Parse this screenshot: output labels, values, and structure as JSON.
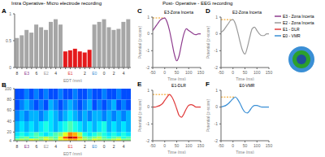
{
  "sections": [
    {
      "title": "Intra Operative- Micro electrode recording"
    },
    {
      "title": "Post- Operative - EEG recording"
    }
  ],
  "chart_data": [
    {
      "panel": "A",
      "type": "bar",
      "categories": [
        "8",
        null,
        "E3",
        null,
        "6",
        null,
        "E2",
        null,
        "4",
        null,
        null,
        "E1",
        null,
        null,
        "2",
        null,
        "E0",
        null,
        "0",
        null,
        "2",
        null,
        "4",
        null
      ],
      "values": [
        0.55,
        0.6,
        0.7,
        0.65,
        0.8,
        0.75,
        0.7,
        0.85,
        0.9,
        0.8,
        0.3,
        0.32,
        0.35,
        0.3,
        0.28,
        0.33,
        0.8,
        0.85,
        0.9,
        0.75,
        0.7,
        0.72,
        0.85,
        0.9
      ],
      "colors": [
        "#a6a6a6",
        "#a6a6a6",
        "#a6a6a6",
        "#a6a6a6",
        "#a6a6a6",
        "#a6a6a6",
        "#a6a6a6",
        "#a6a6a6",
        "#a6a6a6",
        "#a6a6a6",
        "#e41a1c",
        "#e41a1c",
        "#e41a1c",
        "#e41a1c",
        "#e41a1c",
        "#e41a1c",
        "#a6a6a6",
        "#a6a6a6",
        "#a6a6a6",
        "#a6a6a6",
        "#a6a6a6",
        "#a6a6a6",
        "#a6a6a6",
        "#a6a6a6"
      ],
      "ylim": [
        0,
        1
      ],
      "yticks": [
        0,
        0.5,
        1
      ],
      "x_label": "EDT (mm)"
    },
    {
      "panel": "B",
      "type": "heatmap",
      "categories": [
        "8",
        null,
        "E3",
        null,
        "6",
        null,
        "E2",
        null,
        "4",
        null,
        null,
        "E1",
        null,
        null,
        "2",
        null,
        "E0",
        null,
        "0",
        null,
        "2",
        null,
        "4",
        null
      ],
      "y_bins": [
        4,
        8,
        12,
        20,
        40,
        60,
        80,
        100
      ],
      "cells": [
        [
          0.5,
          0.55,
          0.5,
          0.6,
          0.55,
          0.5,
          0.6,
          0.55,
          0.5,
          0.6,
          0.65,
          0.7,
          0.7,
          0.6,
          0.55,
          0.5,
          0.6,
          0.55,
          0.5,
          0.5,
          0.55,
          0.6,
          0.5,
          0.5
        ],
        [
          0.4,
          0.45,
          0.5,
          0.4,
          0.45,
          0.5,
          0.55,
          0.5,
          0.45,
          0.6,
          0.8,
          0.95,
          0.9,
          0.7,
          0.5,
          0.45,
          0.5,
          0.55,
          0.45,
          0.4,
          0.45,
          0.5,
          0.4,
          0.45
        ],
        [
          0.35,
          0.4,
          0.35,
          0.4,
          0.45,
          0.4,
          0.35,
          0.4,
          0.45,
          0.5,
          0.6,
          0.75,
          0.7,
          0.55,
          0.4,
          0.35,
          0.4,
          0.45,
          0.4,
          0.35,
          0.4,
          0.35,
          0.4,
          0.35
        ],
        [
          0.3,
          0.35,
          0.3,
          0.35,
          0.3,
          0.35,
          0.4,
          0.35,
          0.3,
          0.35,
          0.4,
          0.45,
          0.4,
          0.35,
          0.3,
          0.35,
          0.3,
          0.35,
          0.4,
          0.3,
          0.35,
          0.3,
          0.35,
          0.3
        ],
        [
          0.25,
          0.3,
          0.25,
          0.3,
          0.3,
          0.25,
          0.3,
          0.35,
          0.3,
          0.25,
          0.3,
          0.35,
          0.3,
          0.25,
          0.3,
          0.25,
          0.3,
          0.3,
          0.25,
          0.3,
          0.25,
          0.3,
          0.25,
          0.3
        ],
        [
          0.2,
          0.25,
          0.3,
          0.25,
          0.2,
          0.25,
          0.2,
          0.3,
          0.25,
          0.2,
          0.25,
          0.3,
          0.25,
          0.2,
          0.25,
          0.3,
          0.2,
          0.25,
          0.2,
          0.25,
          0.3,
          0.2,
          0.25,
          0.2
        ],
        [
          0.2,
          0.2,
          0.25,
          0.2,
          0.25,
          0.2,
          0.25,
          0.2,
          0.2,
          0.25,
          0.2,
          0.2,
          0.25,
          0.2,
          0.2,
          0.25,
          0.2,
          0.2,
          0.25,
          0.2,
          0.2,
          0.25,
          0.2,
          0.2
        ]
      ],
      "color_range": [
        0,
        1
      ],
      "ylim": [
        4,
        100
      ],
      "yticks": [
        4,
        20,
        40,
        60,
        80,
        100
      ],
      "x_label": "EDT (mm)"
    },
    {
      "panel": "C",
      "type": "line",
      "title": "E3-Zona Incerta",
      "x": [
        -50,
        -40,
        -30,
        -20,
        -10,
        0,
        10,
        20,
        30,
        40,
        50,
        60,
        70,
        80,
        90,
        100,
        110,
        120,
        130,
        140,
        150
      ],
      "series": [
        {
          "name": "E3 - Zona Incerta",
          "color": "#8e3c8e",
          "values": [
            0.2,
            0.4,
            0.6,
            0.8,
            0.9,
            0.95,
            0.7,
            0.2,
            -0.5,
            -1.2,
            -1.6,
            -1.3,
            -0.6,
            0,
            0.3,
            0.2,
            0.1,
            0,
            -0.05,
            0,
            0
          ]
        }
      ],
      "peak": {
        "x": 0,
        "y": 0.95,
        "color": "#f39c12",
        "line_style": "dashed"
      },
      "xlim": [
        -50,
        150
      ],
      "xticks": [
        -50,
        0,
        50,
        100,
        150
      ],
      "ylim": [
        -2,
        1
      ],
      "yticks": [
        -2,
        -1,
        0,
        1
      ],
      "x_label": "Time (ms)",
      "y_label": "Potential (z-score)"
    },
    {
      "panel": "D",
      "type": "line",
      "title": "E2-Zona Incerta",
      "x": [
        -50,
        -40,
        -30,
        -20,
        -10,
        0,
        10,
        20,
        30,
        40,
        50,
        60,
        70,
        80,
        90,
        100,
        110,
        120,
        130,
        140,
        150
      ],
      "series": [
        {
          "name": "E2 - Zona Incerta",
          "color": "#9a9a9a",
          "values": [
            0.1,
            0.2,
            0.4,
            0.6,
            0.8,
            0.85,
            0.6,
            0.1,
            -0.5,
            -1,
            -1.2,
            -0.8,
            -0.2,
            0.3,
            0.4,
            0.2,
            0,
            -0.1,
            -0.1,
            0,
            0
          ]
        }
      ],
      "peak": {
        "x": 0,
        "y": 0.85,
        "color": "#f39c12",
        "line_style": "dashed"
      },
      "xlim": [
        -50,
        150
      ],
      "xticks": [
        -50,
        0,
        50,
        100,
        150
      ],
      "ylim": [
        -2,
        1
      ],
      "yticks": [
        -2,
        -1,
        0,
        1
      ],
      "x_label": "Time (ms)",
      "y_label": "Potential (z-score)"
    },
    {
      "panel": "E",
      "type": "line",
      "title": "E1-DLR",
      "x": [
        -50,
        -40,
        -30,
        -20,
        -10,
        0,
        10,
        20,
        30,
        40,
        50,
        60,
        70,
        80,
        90,
        100,
        110,
        120,
        130,
        140,
        150
      ],
      "series": [
        {
          "name": "E1 - DLR",
          "color": "#e03c3c",
          "values": [
            0,
            0,
            0.05,
            0.1,
            0.2,
            0.4,
            0.6,
            0.75,
            0.6,
            0.3,
            -0.1,
            -0.5,
            -0.6,
            -0.4,
            -0.1,
            0.1,
            0.15,
            0.1,
            0,
            0,
            0
          ]
        }
      ],
      "peak": {
        "x": 20,
        "y": 0.75,
        "color": "#f39c12",
        "line_style": "dashed"
      },
      "xlim": [
        -50,
        150
      ],
      "xticks": [
        -50,
        0,
        50,
        100,
        150
      ],
      "ylim": [
        -2,
        1
      ],
      "yticks": [
        -2,
        -1,
        0,
        1
      ],
      "x_label": "Time (ms)",
      "y_label": "Potential (z-score)"
    },
    {
      "panel": "F",
      "type": "line",
      "title": "E0-VMR",
      "x": [
        -50,
        -40,
        -30,
        -20,
        -10,
        0,
        10,
        20,
        30,
        40,
        50,
        60,
        70,
        80,
        90,
        100,
        110,
        120,
        130,
        140,
        150
      ],
      "series": [
        {
          "name": "E0 - VMR",
          "color": "#3a8fd5",
          "values": [
            0,
            0.05,
            0.1,
            0.2,
            0.35,
            0.5,
            0.6,
            0.45,
            0.2,
            -0.1,
            -0.3,
            -0.35,
            -0.2,
            0,
            0.1,
            0.1,
            0.05,
            0,
            0,
            0,
            0
          ]
        }
      ],
      "peak": {
        "x": 10,
        "y": 0.6,
        "color": "#f39c12",
        "line_style": "dashed"
      },
      "xlim": [
        -50,
        150
      ],
      "xticks": [
        -50,
        0,
        50,
        100,
        150
      ],
      "ylim": [
        -2,
        1
      ],
      "yticks": [
        -2,
        -1,
        0,
        1
      ],
      "x_label": "Time (ms)",
      "y_label": "Potential (z-score)"
    }
  ]
}
